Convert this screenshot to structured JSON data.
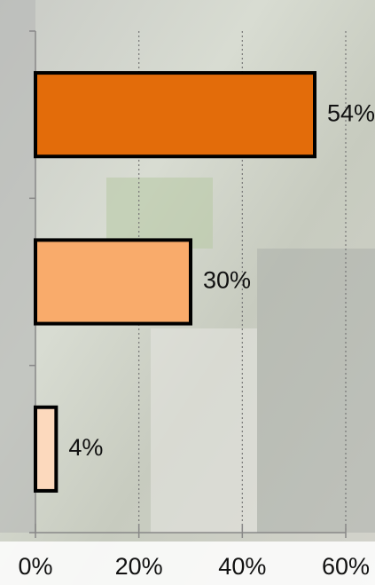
{
  "chart_data": {
    "type": "bar",
    "orientation": "horizontal",
    "categories": [
      null,
      null,
      null
    ],
    "series": [
      {
        "values": [
          54,
          30,
          4
        ],
        "value_labels": [
          "54%",
          "30%",
          "4%"
        ],
        "colors": [
          "#e36c0a",
          "#f9ab6b",
          "#fcd9bd"
        ]
      }
    ],
    "xlim": [
      0,
      60
    ],
    "xticks": [
      {
        "value": 0,
        "label": "0%"
      },
      {
        "value": 20,
        "label": "20%"
      },
      {
        "value": 40,
        "label": "40%"
      },
      {
        "value": 60,
        "label": "60%"
      }
    ],
    "grid": true
  }
}
